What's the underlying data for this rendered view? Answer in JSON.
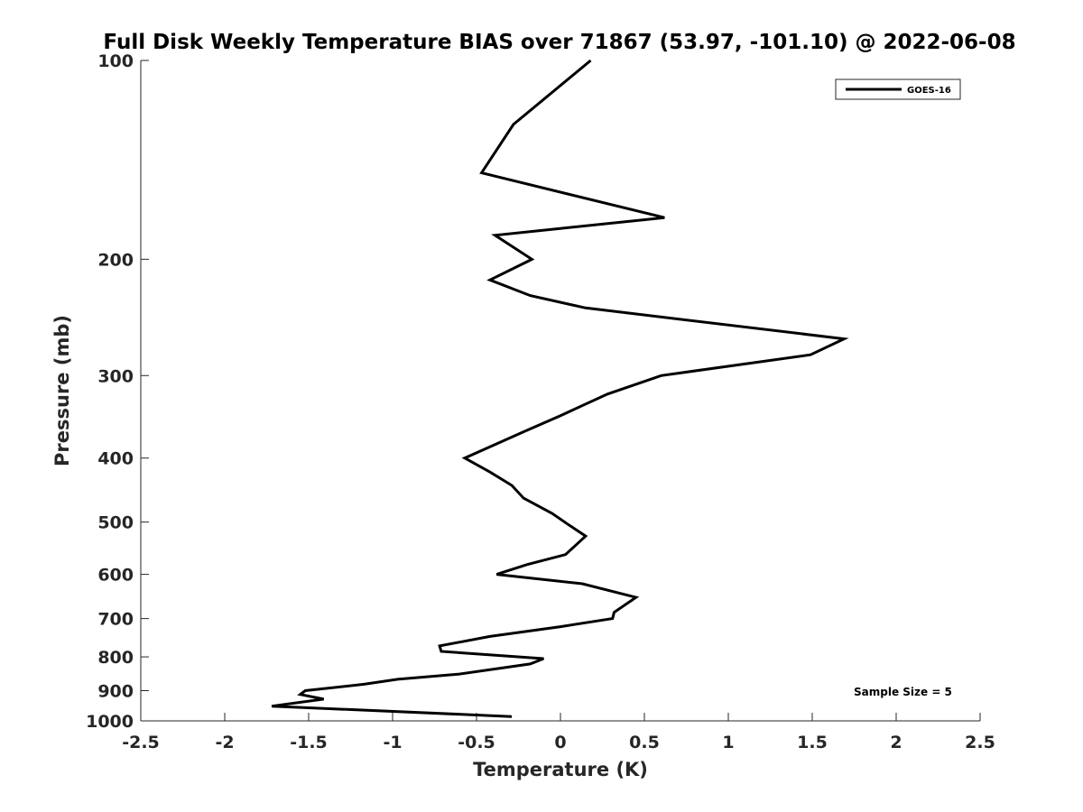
{
  "chart_data": {
    "type": "line",
    "title": "Full Disk Weekly Temperature BIAS over 71867 (53.97, -101.10) @ 2022-06-08",
    "xlabel": "Temperature (K)",
    "ylabel": "Pressure (mb)",
    "xlim": [
      -2.5,
      2.5
    ],
    "ylim": [
      100,
      1000
    ],
    "y_scale": "log",
    "y_reversed": true,
    "xticks": [
      -2.5,
      -2,
      -1.5,
      -1,
      -0.5,
      0,
      0.5,
      1,
      1.5,
      2,
      2.5
    ],
    "xtick_labels": [
      "-2.5",
      "-2",
      "-1.5",
      "-1",
      "-0.5",
      "0",
      "0.5",
      "1",
      "1.5",
      "2",
      "2.5"
    ],
    "yticks": [
      100,
      200,
      300,
      400,
      500,
      600,
      700,
      800,
      900,
      1000
    ],
    "ytick_labels": [
      "100",
      "200",
      "300",
      "400",
      "500",
      "600",
      "700",
      "800",
      "900",
      "1000"
    ],
    "grid": false,
    "legend_position": "top-right",
    "series": [
      {
        "name": "GOES-16",
        "color": "#000000",
        "points": [
          {
            "x": 0.18,
            "y": 100
          },
          {
            "x": -0.28,
            "y": 125
          },
          {
            "x": -0.47,
            "y": 148
          },
          {
            "x": 0.62,
            "y": 173
          },
          {
            "x": -0.39,
            "y": 184
          },
          {
            "x": -0.17,
            "y": 200
          },
          {
            "x": -0.42,
            "y": 215
          },
          {
            "x": -0.18,
            "y": 227
          },
          {
            "x": 0.15,
            "y": 237
          },
          {
            "x": 1.69,
            "y": 264
          },
          {
            "x": 1.49,
            "y": 279
          },
          {
            "x": 0.6,
            "y": 300
          },
          {
            "x": 0.28,
            "y": 320
          },
          {
            "x": 0.0,
            "y": 345
          },
          {
            "x": -0.22,
            "y": 365
          },
          {
            "x": -0.57,
            "y": 400
          },
          {
            "x": -0.42,
            "y": 420
          },
          {
            "x": -0.29,
            "y": 440
          },
          {
            "x": -0.22,
            "y": 460
          },
          {
            "x": -0.05,
            "y": 485
          },
          {
            "x": 0.05,
            "y": 505
          },
          {
            "x": 0.15,
            "y": 525
          },
          {
            "x": 0.03,
            "y": 560
          },
          {
            "x": -0.2,
            "y": 580
          },
          {
            "x": -0.38,
            "y": 600
          },
          {
            "x": 0.13,
            "y": 620
          },
          {
            "x": 0.45,
            "y": 650
          },
          {
            "x": 0.32,
            "y": 685
          },
          {
            "x": 0.31,
            "y": 700
          },
          {
            "x": 0.0,
            "y": 720
          },
          {
            "x": -0.42,
            "y": 745
          },
          {
            "x": -0.72,
            "y": 770
          },
          {
            "x": -0.71,
            "y": 785
          },
          {
            "x": -0.1,
            "y": 805
          },
          {
            "x": -0.18,
            "y": 820
          },
          {
            "x": -0.61,
            "y": 850
          },
          {
            "x": -0.97,
            "y": 865
          },
          {
            "x": -1.17,
            "y": 880
          },
          {
            "x": -1.52,
            "y": 900
          },
          {
            "x": -1.55,
            "y": 912
          },
          {
            "x": -1.41,
            "y": 927
          },
          {
            "x": -1.72,
            "y": 950
          },
          {
            "x": -0.29,
            "y": 985
          }
        ]
      }
    ],
    "annotation": "Sample Size = 5"
  }
}
